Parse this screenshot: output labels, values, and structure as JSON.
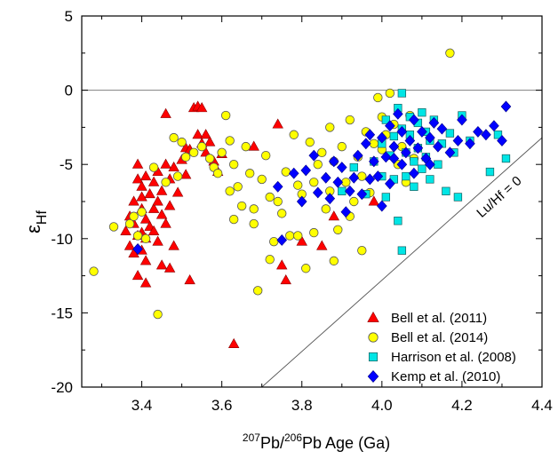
{
  "chart_data": {
    "type": "scatter",
    "title": "",
    "xlabel": {
      "sup1": "207",
      "t1": "Pb/",
      "sup2": "206",
      "t2": "Pb Age (Ga)"
    },
    "ylabel": {
      "main": "ε",
      "sub": "Hf"
    },
    "xlim": [
      3.25,
      4.4
    ],
    "ylim": [
      -20,
      5
    ],
    "xticks": [
      "3.4",
      "3.6",
      "3.8",
      "4.0",
      "4.2",
      "4.4"
    ],
    "yticks": [
      "5",
      "0",
      "-5",
      "-10",
      "-15",
      "-20"
    ],
    "zero_line": 0,
    "reference_line": {
      "label": "Lu/Hf = 0",
      "x": [
        3.7,
        4.4
      ],
      "y": [
        -20,
        -3.2
      ]
    },
    "legend_position": "bottom-right",
    "series": [
      {
        "name": "Bell et al. (2011)",
        "marker": "triangle",
        "color": "#ff0000",
        "points": [
          [
            3.36,
            -9.5
          ],
          [
            3.37,
            -8.5
          ],
          [
            3.37,
            -10.5
          ],
          [
            3.38,
            -9.0
          ],
          [
            3.38,
            -7.5
          ],
          [
            3.38,
            -11.0
          ],
          [
            3.39,
            -9.8
          ],
          [
            3.39,
            -6.0
          ],
          [
            3.39,
            -5.0
          ],
          [
            3.39,
            -12.5
          ],
          [
            3.4,
            -8.0
          ],
          [
            3.4,
            -9.6
          ],
          [
            3.4,
            -10.8
          ],
          [
            3.4,
            -6.5
          ],
          [
            3.4,
            -7.2
          ],
          [
            3.41,
            -5.8
          ],
          [
            3.41,
            -8.7
          ],
          [
            3.41,
            -10.0
          ],
          [
            3.41,
            -11.5
          ],
          [
            3.41,
            -13.0
          ],
          [
            3.42,
            -7.0
          ],
          [
            3.42,
            -9.2
          ],
          [
            3.43,
            -6.2
          ],
          [
            3.43,
            -8.0
          ],
          [
            3.43,
            -9.5
          ],
          [
            3.44,
            -5.5
          ],
          [
            3.44,
            -7.5
          ],
          [
            3.44,
            -10.2
          ],
          [
            3.45,
            -6.8
          ],
          [
            3.45,
            -8.4
          ],
          [
            3.45,
            -11.8
          ],
          [
            3.46,
            -5.0
          ],
          [
            3.46,
            -9.0
          ],
          [
            3.46,
            -1.6
          ],
          [
            3.47,
            -6.0
          ],
          [
            3.47,
            -7.8
          ],
          [
            3.47,
            -12.0
          ],
          [
            3.48,
            -5.2
          ],
          [
            3.48,
            -10.5
          ],
          [
            3.49,
            -6.9
          ],
          [
            3.5,
            -4.7
          ],
          [
            3.51,
            -3.9
          ],
          [
            3.51,
            -5.7
          ],
          [
            3.52,
            -4.0
          ],
          [
            3.52,
            -12.8
          ],
          [
            3.53,
            -1.2
          ],
          [
            3.54,
            -1.1
          ],
          [
            3.54,
            -3.0
          ],
          [
            3.55,
            -3.6
          ],
          [
            3.55,
            -1.2
          ],
          [
            3.56,
            -3.0
          ],
          [
            3.56,
            -4.2
          ],
          [
            3.57,
            -3.5
          ],
          [
            3.58,
            -4.8
          ],
          [
            3.59,
            -5.5
          ],
          [
            3.6,
            -4.3
          ],
          [
            3.63,
            -17.1
          ],
          [
            3.68,
            -3.8
          ],
          [
            3.74,
            -2.3
          ],
          [
            3.75,
            -11.8
          ],
          [
            3.76,
            -12.8
          ],
          [
            3.8,
            -10.2
          ],
          [
            3.85,
            -10.5
          ],
          [
            3.88,
            -8.5
          ],
          [
            3.98,
            -7.5
          ]
        ]
      },
      {
        "name": "Bell et al. (2014)",
        "marker": "circle",
        "color": "#ffff00",
        "points": [
          [
            3.28,
            -12.2
          ],
          [
            3.33,
            -9.2
          ],
          [
            3.37,
            -9.0
          ],
          [
            3.38,
            -8.5
          ],
          [
            3.39,
            -9.8
          ],
          [
            3.4,
            -8.2
          ],
          [
            3.41,
            -10.0
          ],
          [
            3.43,
            -5.2
          ],
          [
            3.44,
            -15.1
          ],
          [
            3.46,
            -6.2
          ],
          [
            3.48,
            -3.2
          ],
          [
            3.49,
            -5.8
          ],
          [
            3.5,
            -3.5
          ],
          [
            3.51,
            -4.5
          ],
          [
            3.53,
            -4.2
          ],
          [
            3.55,
            -3.8
          ],
          [
            3.57,
            -4.6
          ],
          [
            3.58,
            -5.2
          ],
          [
            3.59,
            -5.6
          ],
          [
            3.6,
            -4.2
          ],
          [
            3.61,
            -1.7
          ],
          [
            3.62,
            -3.4
          ],
          [
            3.62,
            -6.8
          ],
          [
            3.63,
            -5.0
          ],
          [
            3.63,
            -8.7
          ],
          [
            3.64,
            -6.5
          ],
          [
            3.65,
            -7.8
          ],
          [
            3.66,
            -3.8
          ],
          [
            3.67,
            -5.6
          ],
          [
            3.68,
            -8.0
          ],
          [
            3.68,
            -9.0
          ],
          [
            3.69,
            -13.5
          ],
          [
            3.7,
            -6.0
          ],
          [
            3.71,
            -4.4
          ],
          [
            3.72,
            -7.2
          ],
          [
            3.72,
            -11.4
          ],
          [
            3.73,
            -10.2
          ],
          [
            3.74,
            -7.5
          ],
          [
            3.75,
            -8.3
          ],
          [
            3.76,
            -5.5
          ],
          [
            3.77,
            -9.8
          ],
          [
            3.78,
            -3.0
          ],
          [
            3.79,
            -6.4
          ],
          [
            3.8,
            -7.0
          ],
          [
            3.81,
            -12.0
          ],
          [
            3.82,
            -3.5
          ],
          [
            3.83,
            -6.2
          ],
          [
            3.83,
            -9.6
          ],
          [
            3.84,
            -5.0
          ],
          [
            3.85,
            -4.2
          ],
          [
            3.86,
            -8.0
          ],
          [
            3.87,
            -2.5
          ],
          [
            3.87,
            -6.8
          ],
          [
            3.88,
            -4.8
          ],
          [
            3.89,
            -9.4
          ],
          [
            3.9,
            -3.8
          ],
          [
            3.91,
            -6.2
          ],
          [
            3.92,
            -2.0
          ],
          [
            3.93,
            -7.5
          ],
          [
            3.94,
            -4.5
          ],
          [
            3.95,
            -5.8
          ],
          [
            3.96,
            -2.8
          ],
          [
            3.97,
            -6.9
          ],
          [
            3.98,
            -3.6
          ],
          [
            3.99,
            -0.5
          ],
          [
            4.0,
            -4.0
          ],
          [
            4.0,
            -1.8
          ],
          [
            4.01,
            -3.0
          ],
          [
            4.02,
            -0.2
          ],
          [
            4.03,
            -2.3
          ],
          [
            4.04,
            -5.0
          ],
          [
            4.05,
            -3.8
          ],
          [
            4.06,
            -6.2
          ],
          [
            4.07,
            -1.7
          ],
          [
            4.08,
            -4.6
          ],
          [
            4.17,
            2.5
          ],
          [
            3.95,
            -10.8
          ],
          [
            3.92,
            -8.5
          ],
          [
            3.88,
            -11.5
          ],
          [
            3.79,
            -9.8
          ]
        ]
      },
      {
        "name": "Harrison et al. (2008)",
        "marker": "square",
        "color": "#00e5e5",
        "points": [
          [
            3.9,
            -6.8
          ],
          [
            3.93,
            -5.2
          ],
          [
            3.96,
            -7.0
          ],
          [
            3.98,
            -4.8
          ],
          [
            4.0,
            -3.6
          ],
          [
            4.0,
            -5.8
          ],
          [
            4.01,
            -7.2
          ],
          [
            4.01,
            -2.0
          ],
          [
            4.02,
            -4.4
          ],
          [
            4.03,
            -3.1
          ],
          [
            4.03,
            -6.0
          ],
          [
            4.04,
            -1.2
          ],
          [
            4.04,
            -8.8
          ],
          [
            4.05,
            -0.2
          ],
          [
            4.05,
            -2.6
          ],
          [
            4.05,
            -10.8
          ],
          [
            4.06,
            -4.2
          ],
          [
            4.06,
            -5.8
          ],
          [
            4.07,
            -3.0
          ],
          [
            4.07,
            -1.8
          ],
          [
            4.08,
            -4.8
          ],
          [
            4.08,
            -6.5
          ],
          [
            4.09,
            -2.2
          ],
          [
            4.09,
            -3.9
          ],
          [
            4.1,
            -5.3
          ],
          [
            4.1,
            -1.5
          ],
          [
            4.11,
            -2.8
          ],
          [
            4.11,
            -4.5
          ],
          [
            4.12,
            -6.0
          ],
          [
            4.12,
            -3.4
          ],
          [
            4.13,
            -2.0
          ],
          [
            4.14,
            -5.0
          ],
          [
            4.15,
            -3.6
          ],
          [
            4.16,
            -6.8
          ],
          [
            4.17,
            -2.9
          ],
          [
            4.18,
            -4.2
          ],
          [
            4.19,
            -7.2
          ],
          [
            4.2,
            -1.7
          ],
          [
            4.22,
            -3.4
          ],
          [
            4.27,
            -5.5
          ],
          [
            4.29,
            -3.0
          ],
          [
            4.31,
            -4.6
          ]
        ]
      },
      {
        "name": "Kemp et al. (2010)",
        "marker": "diamond",
        "color": "#0000ff",
        "points": [
          [
            3.39,
            -10.7
          ],
          [
            3.74,
            -6.5
          ],
          [
            3.75,
            -10.1
          ],
          [
            3.78,
            -5.6
          ],
          [
            3.8,
            -7.5
          ],
          [
            3.81,
            -5.4
          ],
          [
            3.83,
            -4.4
          ],
          [
            3.84,
            -6.9
          ],
          [
            3.86,
            -5.9
          ],
          [
            3.87,
            -7.3
          ],
          [
            3.88,
            -4.8
          ],
          [
            3.89,
            -6.2
          ],
          [
            3.9,
            -5.2
          ],
          [
            3.91,
            -8.2
          ],
          [
            3.92,
            -6.8
          ],
          [
            3.93,
            -5.9
          ],
          [
            3.94,
            -4.4
          ],
          [
            3.95,
            -7.0
          ],
          [
            3.96,
            -3.6
          ],
          [
            3.97,
            -6.0
          ],
          [
            3.98,
            -4.8
          ],
          [
            3.99,
            -5.8
          ],
          [
            4.0,
            -3.2
          ],
          [
            4.0,
            -7.8
          ],
          [
            4.01,
            -4.5
          ],
          [
            4.02,
            -2.4
          ],
          [
            4.02,
            -6.3
          ],
          [
            4.03,
            -3.8
          ],
          [
            4.04,
            -1.6
          ],
          [
            4.05,
            -5.0
          ],
          [
            4.05,
            -2.8
          ],
          [
            4.06,
            -4.2
          ],
          [
            4.07,
            -3.4
          ],
          [
            4.08,
            -2.0
          ],
          [
            4.08,
            -5.6
          ],
          [
            4.09,
            -3.9
          ],
          [
            4.1,
            -2.8
          ],
          [
            4.11,
            -4.6
          ],
          [
            4.12,
            -3.2
          ],
          [
            4.13,
            -2.2
          ],
          [
            4.14,
            -3.8
          ],
          [
            4.15,
            -2.6
          ],
          [
            4.17,
            -4.2
          ],
          [
            4.19,
            -3.4
          ],
          [
            4.2,
            -2.0
          ],
          [
            4.22,
            -3.6
          ],
          [
            4.24,
            -2.8
          ],
          [
            4.26,
            -3.0
          ],
          [
            4.28,
            -2.4
          ],
          [
            4.3,
            -3.4
          ],
          [
            4.31,
            -1.1
          ],
          [
            4.12,
            -5.0
          ],
          [
            4.03,
            -4.6
          ],
          [
            3.97,
            -3.0
          ]
        ]
      }
    ]
  }
}
